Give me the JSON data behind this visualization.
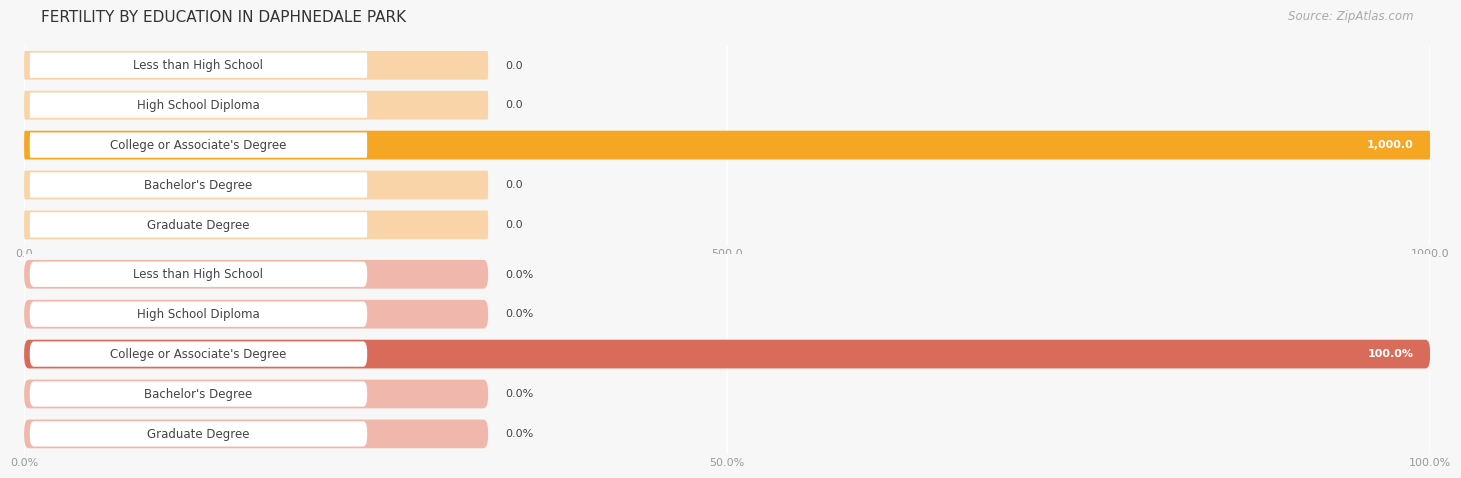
{
  "title": "FERTILITY BY EDUCATION IN DAPHNEDALE PARK",
  "source": "Source: ZipAtlas.com",
  "top_chart": {
    "categories": [
      "Less than High School",
      "High School Diploma",
      "College or Associate's Degree",
      "Bachelor's Degree",
      "Graduate Degree"
    ],
    "values": [
      0.0,
      0.0,
      1000.0,
      0.0,
      0.0
    ],
    "xlim": [
      0,
      1000
    ],
    "xticks": [
      0.0,
      500.0,
      1000.0
    ],
    "bar_color_active": "#F5A623",
    "bar_color_inactive": "#F8D4A8",
    "label_suffix": "",
    "value_label_active": "1,000.0",
    "value_label_inactive": "0.0"
  },
  "bottom_chart": {
    "categories": [
      "Less than High School",
      "High School Diploma",
      "College or Associate's Degree",
      "Bachelor's Degree",
      "Graduate Degree"
    ],
    "values": [
      0.0,
      0.0,
      100.0,
      0.0,
      0.0
    ],
    "xlim": [
      0,
      100
    ],
    "xticks": [
      0.0,
      50.0,
      100.0
    ],
    "bar_color_active": "#D96B5A",
    "bar_color_inactive": "#F0B8AD",
    "label_suffix": "%",
    "value_label_active": "100.0%",
    "value_label_inactive": "0.0%"
  },
  "bg_color": "#f7f7f7",
  "row_bg_color": "#efefef",
  "label_bg_color": "#ffffff",
  "label_text_color": "#444444",
  "title_color": "#333333",
  "source_color": "#aaaaaa",
  "tick_color": "#999999",
  "bar_height": 0.72,
  "label_fontsize": 8.5,
  "title_fontsize": 11,
  "source_fontsize": 8.5,
  "tick_fontsize": 8,
  "value_fontsize": 8
}
